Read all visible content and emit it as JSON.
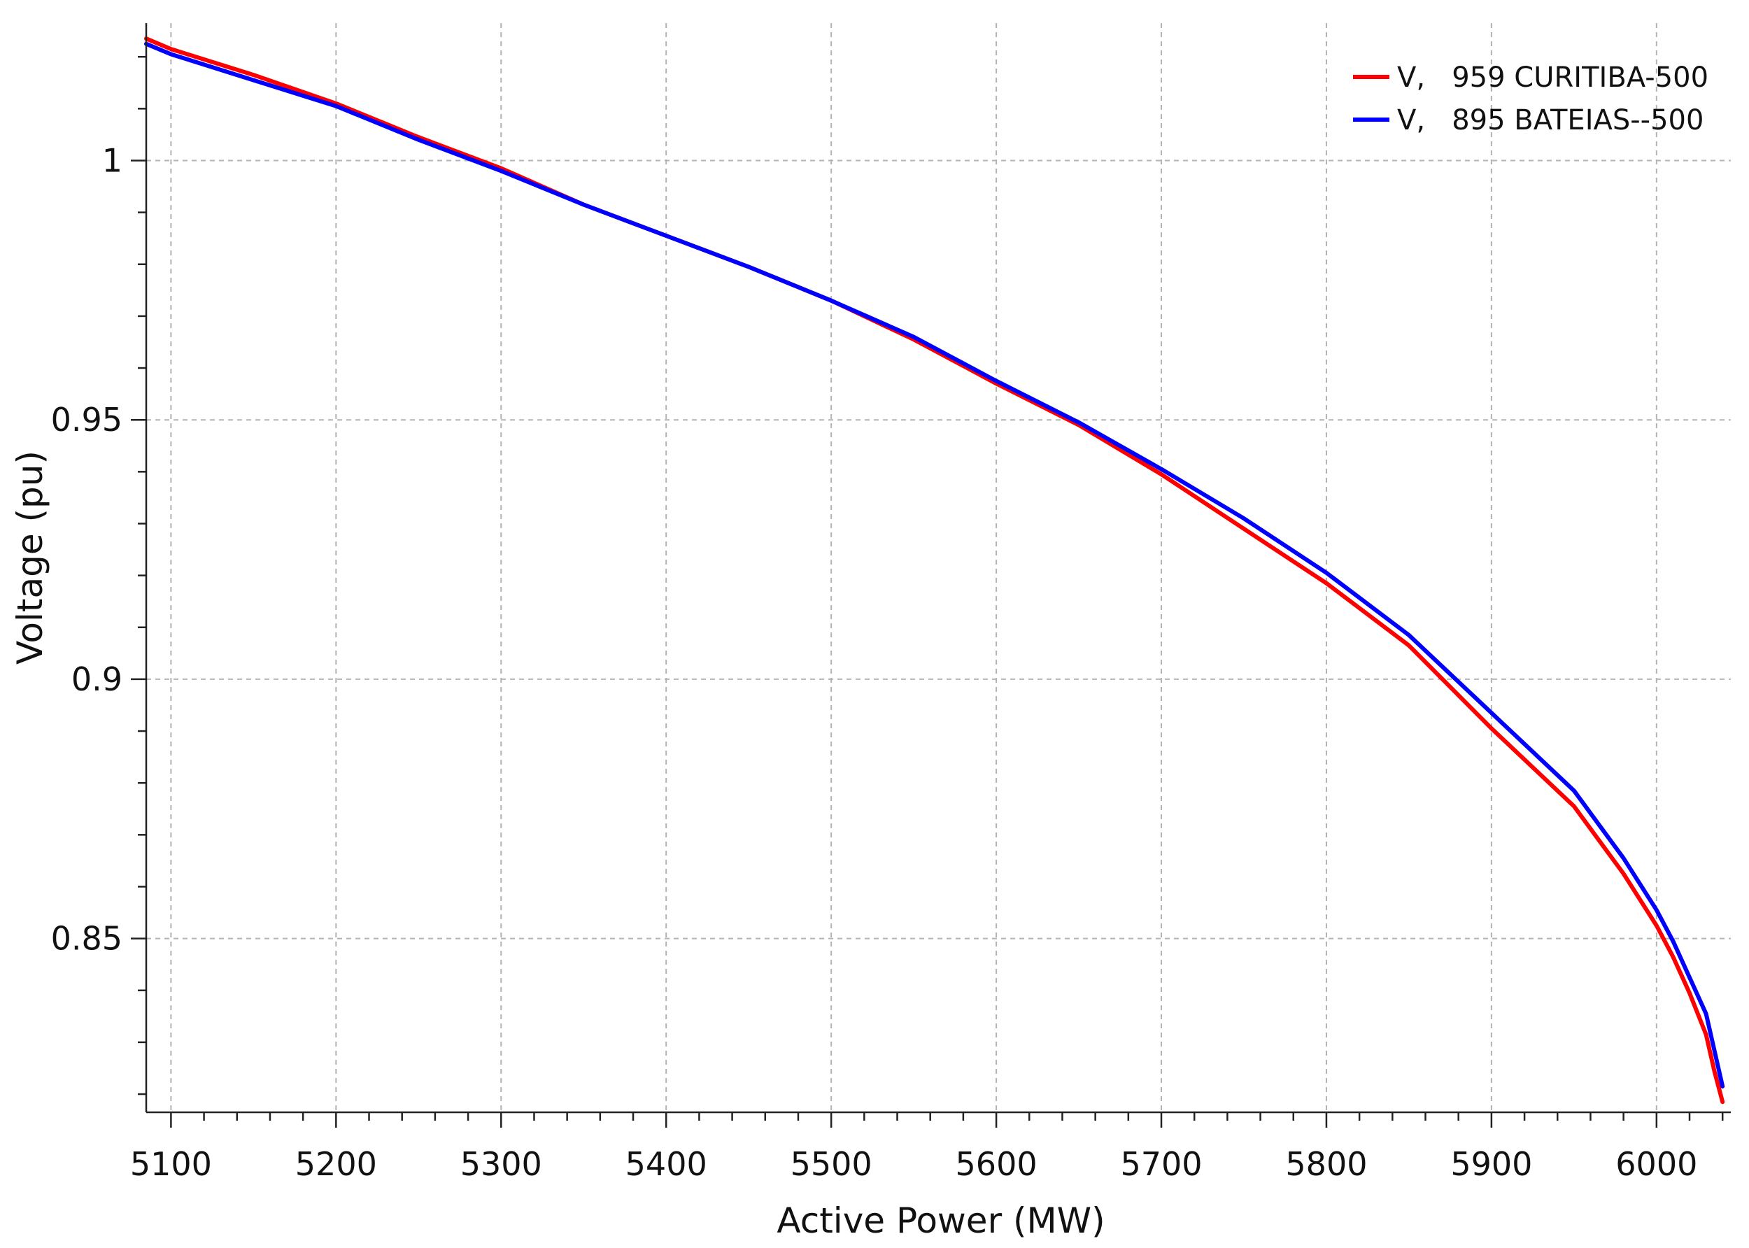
{
  "chart_data": {
    "type": "line",
    "title": "",
    "xlabel": "Active Power (MW)",
    "ylabel": "Voltage (pu)",
    "xlim": [
      5085,
      6045
    ],
    "ylim": [
      0.8165,
      1.0265
    ],
    "x_ticks": [
      5100,
      5200,
      5300,
      5400,
      5500,
      5600,
      5700,
      5800,
      5900,
      6000
    ],
    "x_tick_labels": [
      "5100",
      "5200",
      "5300",
      "5400",
      "5500",
      "5600",
      "5700",
      "5800",
      "5900",
      "6000"
    ],
    "y_ticks": [
      0.85,
      0.9,
      0.95,
      1.0
    ],
    "y_tick_labels": [
      "0.85",
      "0.9",
      "0.95",
      "1"
    ],
    "grid": true,
    "legend_position": "top-right",
    "series": [
      {
        "name": "V,   959 CURITIBA-500",
        "color": "#ff0000",
        "x": [
          5085,
          5100,
          5150,
          5200,
          5250,
          5300,
          5350,
          5400,
          5450,
          5500,
          5550,
          5600,
          5650,
          5700,
          5750,
          5800,
          5850,
          5900,
          5950,
          5980,
          6000,
          6010,
          6020,
          6030,
          6035,
          6040
        ],
        "y": [
          1.0235,
          1.0215,
          1.0165,
          1.011,
          1.0045,
          0.9985,
          0.9915,
          0.9855,
          0.9795,
          0.973,
          0.9655,
          0.957,
          0.949,
          0.9395,
          0.929,
          0.9185,
          0.9065,
          0.8905,
          0.8755,
          0.8625,
          0.8525,
          0.8465,
          0.8395,
          0.8315,
          0.8245,
          0.8185
        ]
      },
      {
        "name": "V,   895 BATEIAS--500",
        "color": "#0000ff",
        "x": [
          5085,
          5100,
          5150,
          5200,
          5250,
          5300,
          5350,
          5400,
          5450,
          5500,
          5550,
          5600,
          5650,
          5700,
          5750,
          5800,
          5850,
          5900,
          5950,
          5980,
          6000,
          6010,
          6020,
          6030,
          6035,
          6040
        ],
        "y": [
          1.0225,
          1.0205,
          1.0155,
          1.0105,
          1.004,
          0.998,
          0.9915,
          0.9855,
          0.9795,
          0.973,
          0.966,
          0.9575,
          0.9495,
          0.9405,
          0.931,
          0.9205,
          0.9085,
          0.8935,
          0.8785,
          0.8655,
          0.8555,
          0.8495,
          0.8425,
          0.8355,
          0.8285,
          0.8215
        ]
      }
    ]
  }
}
